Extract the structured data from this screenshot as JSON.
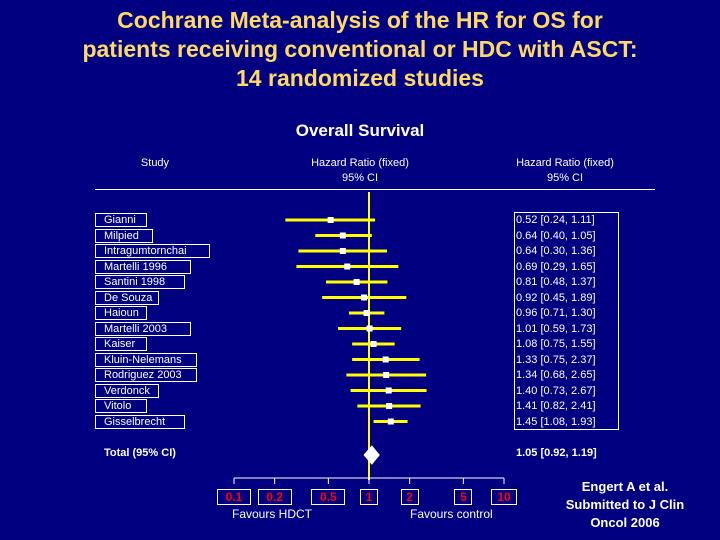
{
  "title_lines": [
    "Cochrane Meta-analysis of the HR for OS for",
    "patients receiving conventional or HDC with ASCT:",
    "14 randomized studies"
  ],
  "colors": {
    "background": "#000080",
    "title": "#FFD966",
    "text": "#FFFFFF",
    "tick_labels": "#FF0000",
    "ci_line": "#FFFF00",
    "point": "#FFFFFF"
  },
  "chart_data": {
    "type": "forest",
    "title": "Overall Survival",
    "column_headers": {
      "study": "Study",
      "plot": [
        "Hazard Ratio (fixed)",
        "95% CI"
      ],
      "values": [
        "Hazard Ratio (fixed)",
        "95% CI"
      ]
    },
    "x_scale": "log",
    "xlim": [
      0.1,
      10
    ],
    "x_ticks": [
      0.1,
      0.2,
      0.5,
      1,
      2,
      5,
      10
    ],
    "x_tick_labels": [
      "0.1",
      "0.2",
      "0.5",
      "1",
      "2",
      "5",
      "10"
    ],
    "x_favours": {
      "left": "Favours HDCT",
      "right": "Favours control"
    },
    "studies": [
      {
        "name": "Gianni",
        "hr": 0.52,
        "lo": 0.24,
        "hi": 1.11,
        "ci_text": "0.52 [0.24, 1.11]"
      },
      {
        "name": "Milpied",
        "hr": 0.64,
        "lo": 0.4,
        "hi": 1.05,
        "ci_text": "0.64 [0.40, 1.05]"
      },
      {
        "name": "Intragumtornchai",
        "hr": 0.64,
        "lo": 0.3,
        "hi": 1.36,
        "ci_text": "0.64 [0.30, 1.36]"
      },
      {
        "name": "Martelli 1996",
        "hr": 0.69,
        "lo": 0.29,
        "hi": 1.65,
        "ci_text": "0.69 [0.29, 1.65]"
      },
      {
        "name": "Santini 1998",
        "hr": 0.81,
        "lo": 0.48,
        "hi": 1.37,
        "ci_text": "0.81 [0.48, 1.37]"
      },
      {
        "name": "De Souza",
        "hr": 0.92,
        "lo": 0.45,
        "hi": 1.89,
        "ci_text": "0.92 [0.45, 1.89]"
      },
      {
        "name": "Haioun",
        "hr": 0.96,
        "lo": 0.71,
        "hi": 1.3,
        "ci_text": "0.96 [0.71, 1.30]"
      },
      {
        "name": "Martelli 2003",
        "hr": 1.01,
        "lo": 0.59,
        "hi": 1.73,
        "ci_text": "1.01 [0.59, 1.73]"
      },
      {
        "name": "Kaiser",
        "hr": 1.08,
        "lo": 0.75,
        "hi": 1.55,
        "ci_text": "1.08 [0.75, 1.55]"
      },
      {
        "name": "Kluin-Nelemans",
        "hr": 1.33,
        "lo": 0.75,
        "hi": 2.37,
        "ci_text": "1.33 [0.75, 2.37]"
      },
      {
        "name": "Rodriguez 2003",
        "hr": 1.34,
        "lo": 0.68,
        "hi": 2.65,
        "ci_text": "1.34 [0.68, 2.65]"
      },
      {
        "name": "Verdonck",
        "hr": 1.4,
        "lo": 0.73,
        "hi": 2.67,
        "ci_text": "1.40 [0.73, 2.67]"
      },
      {
        "name": "Vitolo",
        "hr": 1.41,
        "lo": 0.82,
        "hi": 2.41,
        "ci_text": "1.41 [0.82, 2.41]"
      },
      {
        "name": "Gisselbrecht",
        "hr": 1.45,
        "lo": 1.08,
        "hi": 1.93,
        "ci_text": "1.45 [1.08, 1.93]"
      }
    ],
    "total": {
      "name": "Total (95% CI)",
      "hr": 1.05,
      "lo": 0.92,
      "hi": 1.19,
      "ci_text": "1.05 [0.92, 1.19]"
    }
  },
  "reference_lines": [
    "Engert A et al.",
    "Submitted to J Clin",
    "Oncol 2006"
  ]
}
